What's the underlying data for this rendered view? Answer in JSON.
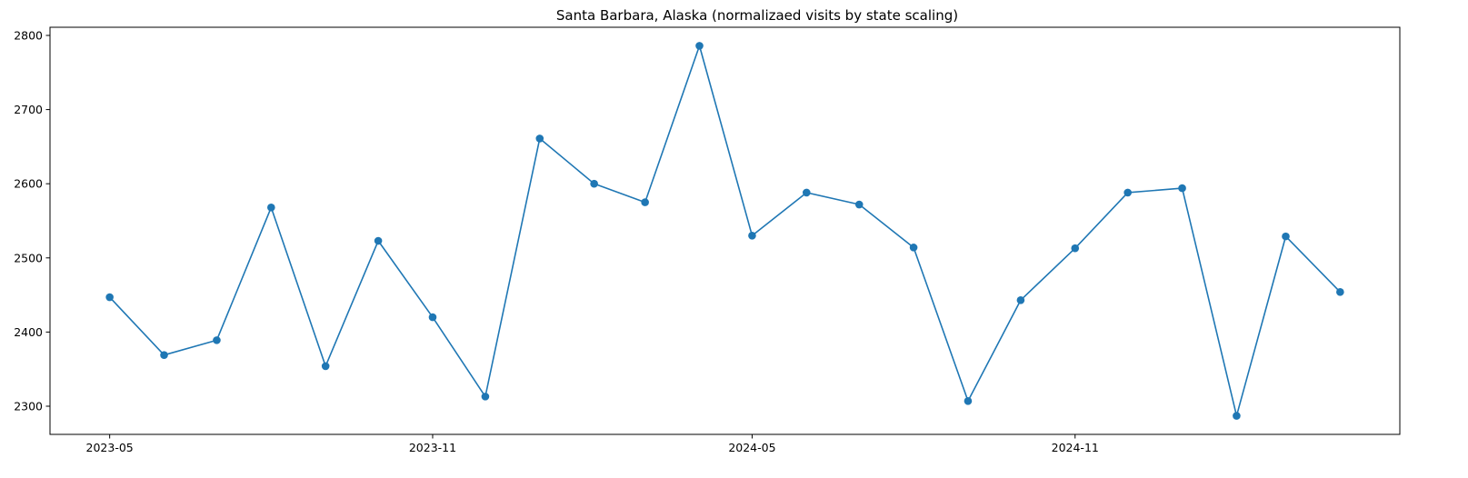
{
  "chart_data": {
    "type": "line",
    "title": "Santa Barbara, Alaska (normalizaed visits by state scaling)",
    "xlabel": "",
    "ylabel": "",
    "x": [
      "2023-05-01",
      "2023-06-01",
      "2023-07-01",
      "2023-08-01",
      "2023-09-01",
      "2023-10-01",
      "2023-11-01",
      "2023-12-01",
      "2024-01-01",
      "2024-02-01",
      "2024-03-01",
      "2024-04-01",
      "2024-05-01",
      "2024-06-01",
      "2024-07-01",
      "2024-08-01",
      "2024-09-01",
      "2024-10-01",
      "2024-11-01",
      "2024-12-01",
      "2025-01-01",
      "2025-02-01",
      "2025-03-01",
      "2025-04-01"
    ],
    "series": [
      {
        "values": [
          2447,
          2369,
          2389,
          2568,
          2354,
          2523,
          2420,
          2313,
          2661,
          2600,
          2575,
          2786,
          2530,
          2588,
          2572,
          2514,
          2307,
          2443,
          2513,
          2588,
          2594,
          2287,
          2529,
          2454
        ],
        "color": "#1f77b4"
      }
    ],
    "xticks": [
      "2023-05",
      "2023-11",
      "2024-05",
      "2024-11"
    ],
    "xtick_dates": [
      "2023-05-01",
      "2023-11-01",
      "2024-05-01",
      "2024-11-01"
    ],
    "yticks": [
      2300,
      2400,
      2500,
      2600,
      2700,
      2800
    ],
    "xlim": [
      "2023-03-28",
      "2025-05-05"
    ],
    "ylim": [
      2262,
      2811
    ],
    "grid": false,
    "legend": "none",
    "marker": "circle"
  }
}
